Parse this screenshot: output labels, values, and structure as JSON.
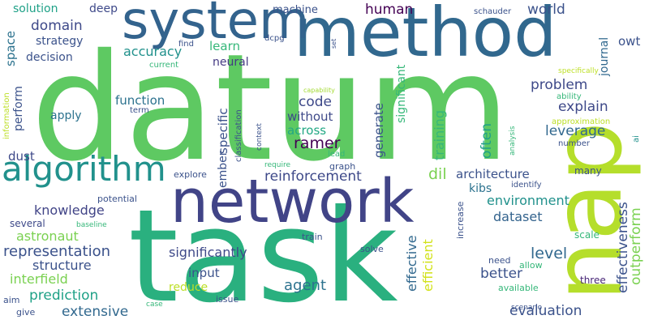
{
  "words": [
    {
      "text": "datum",
      "color": "#5ec962"
    },
    {
      "text": "task",
      "color": "#2ab07f"
    },
    {
      "text": "method",
      "color": "#31688e"
    },
    {
      "text": "network",
      "color": "#414487"
    },
    {
      "text": "system",
      "color": "#33638d"
    },
    {
      "text": "nap",
      "color": "#b5de2b"
    },
    {
      "text": "algorithm",
      "color": "#21918c"
    },
    {
      "text": "reinforcement",
      "color": "#3e4989"
    },
    {
      "text": "ramer",
      "color": "#440154"
    },
    {
      "text": "human",
      "color": "#440154"
    },
    {
      "text": "world",
      "color": "#3b528b"
    },
    {
      "text": "domain",
      "color": "#3e4989"
    },
    {
      "text": "deep",
      "color": "#3e4989"
    },
    {
      "text": "solution",
      "color": "#1fa187"
    },
    {
      "text": "strategy",
      "color": "#3b528b"
    },
    {
      "text": "decision",
      "color": "#3b528b"
    },
    {
      "text": "space",
      "color": "#2c728e"
    },
    {
      "text": "accuracy",
      "color": "#21918c"
    },
    {
      "text": "learn",
      "color": "#35b779"
    },
    {
      "text": "neural",
      "color": "#443983"
    },
    {
      "text": "machine",
      "color": "#3b528b"
    },
    {
      "text": "code",
      "color": "#3e4989"
    },
    {
      "text": "without",
      "color": "#3e4989"
    },
    {
      "text": "across",
      "color": "#22a884"
    },
    {
      "text": "function",
      "color": "#2c728e"
    },
    {
      "text": "apply",
      "color": "#2c728e"
    },
    {
      "text": "perform",
      "color": "#3b528b"
    },
    {
      "text": "problem",
      "color": "#3e4989"
    },
    {
      "text": "explain",
      "color": "#3e4989"
    },
    {
      "text": "leverage",
      "color": "#31688e"
    },
    {
      "text": "knowledge",
      "color": "#414487"
    },
    {
      "text": "architecture",
      "color": "#3b528b"
    },
    {
      "text": "environment",
      "color": "#21918c"
    },
    {
      "text": "dataset",
      "color": "#33638d"
    },
    {
      "text": "dil",
      "color": "#7ad151"
    },
    {
      "text": "kibs",
      "color": "#2c728e"
    },
    {
      "text": "astronaut",
      "color": "#7ad151"
    },
    {
      "text": "representation",
      "color": "#3b528b"
    },
    {
      "text": "structure",
      "color": "#3b528b"
    },
    {
      "text": "interfield",
      "color": "#7ad151"
    },
    {
      "text": "prediction",
      "color": "#1fa187"
    },
    {
      "text": "extensive",
      "color": "#31688e"
    },
    {
      "text": "significantly",
      "color": "#3e4989"
    },
    {
      "text": "input",
      "color": "#3b528b"
    },
    {
      "text": "reduce",
      "color": "#bddf26"
    },
    {
      "text": "agent",
      "color": "#2c728e"
    },
    {
      "text": "level",
      "color": "#31688e"
    },
    {
      "text": "better",
      "color": "#3b528b"
    },
    {
      "text": "evaluation",
      "color": "#3b528b"
    },
    {
      "text": "effectiveness",
      "color": "#3b528b"
    },
    {
      "text": "outperform",
      "color": "#7ad151"
    },
    {
      "text": "effective",
      "color": "#31688e"
    },
    {
      "text": "efficient",
      "color": "#d2e21b"
    },
    {
      "text": "dust",
      "color": "#3e4989"
    },
    {
      "text": "ember",
      "color": "#3b528b"
    },
    {
      "text": "specific",
      "color": "#3b528b"
    },
    {
      "text": "generate",
      "color": "#3b528b"
    },
    {
      "text": "significant",
      "color": "#35b779"
    },
    {
      "text": "training",
      "color": "#35b779"
    },
    {
      "text": "often",
      "color": "#1fa187"
    },
    {
      "text": "journal",
      "color": "#31688e"
    },
    {
      "text": "owt",
      "color": "#3b528b"
    },
    {
      "text": "potential",
      "color": "#3b528b"
    },
    {
      "text": "several",
      "color": "#3e4989"
    },
    {
      "text": "baseline",
      "color": "#35b779"
    },
    {
      "text": "many",
      "color": "#3b528b"
    },
    {
      "text": "scale",
      "color": "#35b779"
    },
    {
      "text": "three",
      "color": "#482677"
    },
    {
      "text": "available",
      "color": "#35b779"
    },
    {
      "text": "allow",
      "color": "#35b779"
    },
    {
      "text": "need",
      "color": "#3b528b"
    },
    {
      "text": "solve",
      "color": "#3b528b"
    },
    {
      "text": "train",
      "color": "#3b528b"
    },
    {
      "text": "increase",
      "color": "#3b528b"
    },
    {
      "text": "scenario",
      "color": "#3b528b"
    },
    {
      "text": "issue",
      "color": "#3b528b"
    },
    {
      "text": "case",
      "color": "#35b779"
    },
    {
      "text": "give",
      "color": "#3b528b"
    },
    {
      "text": "aim",
      "color": "#3b528b"
    },
    {
      "text": "find",
      "color": "#3b528b"
    },
    {
      "text": "dcpg",
      "color": "#3b528b"
    },
    {
      "text": "set",
      "color": "#3b528b"
    },
    {
      "text": "schauder",
      "color": "#3b528b"
    },
    {
      "text": "current",
      "color": "#35b779"
    },
    {
      "text": "term",
      "color": "#3b528b"
    },
    {
      "text": "classification",
      "color": "#3b528b"
    },
    {
      "text": "context",
      "color": "#3b528b"
    },
    {
      "text": "capability",
      "color": "#a5db36"
    },
    {
      "text": "specifically",
      "color": "#bddf26"
    },
    {
      "text": "ability",
      "color": "#35b779"
    },
    {
      "text": "approximation",
      "color": "#bddf26"
    },
    {
      "text": "ai",
      "color": "#21918c"
    },
    {
      "text": "analysis",
      "color": "#35b779"
    },
    {
      "text": "number",
      "color": "#3b528b"
    },
    {
      "text": "identify",
      "color": "#3b528b"
    },
    {
      "text": "lead",
      "color": "#35b779"
    },
    {
      "text": "graph",
      "color": "#3b528b"
    },
    {
      "text": "require",
      "color": "#35b779"
    },
    {
      "text": "explore",
      "color": "#3b528b"
    },
    {
      "text": "information",
      "color": "#bddf26"
    }
  ]
}
